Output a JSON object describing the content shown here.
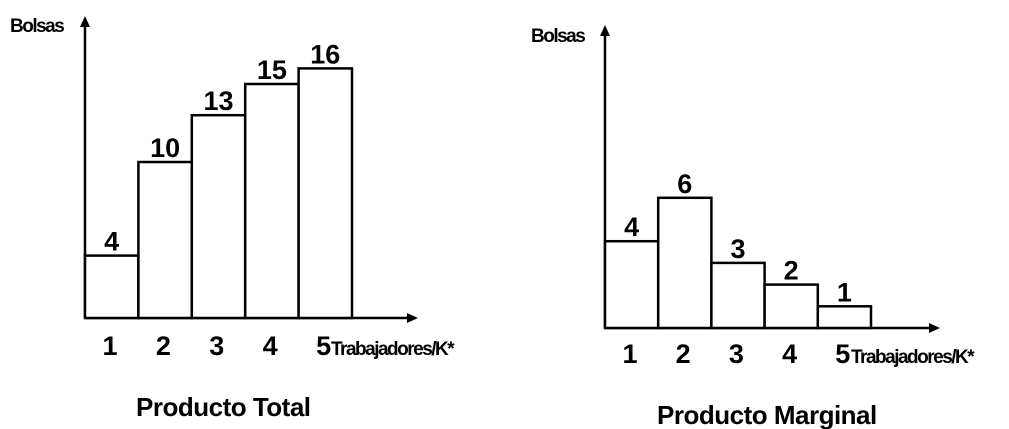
{
  "chart_data": [
    {
      "type": "bar",
      "title": "Producto Total",
      "xlabel": "Trabajadores/K*",
      "ylabel": "Bolsas",
      "categories": [
        "1",
        "2",
        "3",
        "4",
        "5"
      ],
      "values": [
        4,
        10,
        13,
        15,
        16
      ],
      "grid": false,
      "legend": false
    },
    {
      "type": "bar",
      "title": "Producto Marginal",
      "xlabel": "Trabajadores/K*",
      "ylabel": "Bolsas",
      "categories": [
        "1",
        "2",
        "3",
        "4",
        "5"
      ],
      "values": [
        4,
        6,
        3,
        2,
        1
      ],
      "grid": false,
      "legend": false
    }
  ]
}
